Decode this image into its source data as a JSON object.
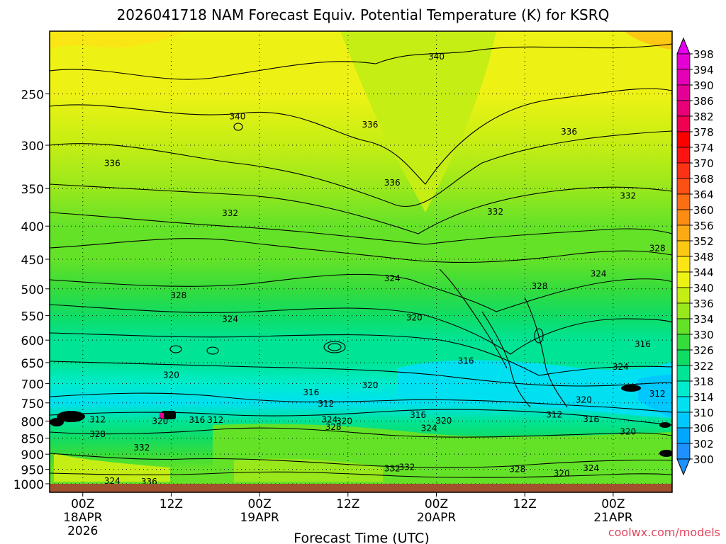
{
  "chart_data": {
    "type": "heatmap",
    "title": "2026041718 NAM Forecast Equiv. Potential Temperature (K) for KSRQ",
    "xlabel": "Forecast Time (UTC)",
    "ylabel": "",
    "credit": "coolwx.com/models",
    "units": "K",
    "y_pressure_range": [
      1000,
      200
    ],
    "y_ticks": [
      250,
      300,
      350,
      400,
      450,
      500,
      550,
      600,
      650,
      700,
      750,
      800,
      850,
      900,
      950,
      1000
    ],
    "x_range_hours": [
      -4.5,
      80
    ],
    "x_ticks": [
      {
        "hour": 0,
        "label": "00Z",
        "sub1": "18APR",
        "sub2": "2026"
      },
      {
        "hour": 12,
        "label": "12Z",
        "sub1": "",
        "sub2": ""
      },
      {
        "hour": 24,
        "label": "00Z",
        "sub1": "19APR",
        "sub2": ""
      },
      {
        "hour": 36,
        "label": "12Z",
        "sub1": "",
        "sub2": ""
      },
      {
        "hour": 48,
        "label": "00Z",
        "sub1": "20APR",
        "sub2": ""
      },
      {
        "hour": 60,
        "label": "12Z",
        "sub1": "",
        "sub2": ""
      },
      {
        "hour": 72,
        "label": "00Z",
        "sub1": "21APR",
        "sub2": ""
      }
    ],
    "colorbar_levels": [
      300,
      302,
      306,
      310,
      314,
      318,
      322,
      326,
      330,
      334,
      336,
      340,
      344,
      348,
      352,
      356,
      360,
      364,
      368,
      370,
      374,
      378,
      382,
      386,
      390,
      394,
      398
    ],
    "colorbar_colors": {
      "300": "#1e90ff",
      "302": "#00a6ff",
      "306": "#00c8ff",
      "310": "#00e0f0",
      "314": "#00eccc",
      "318": "#00e496",
      "322": "#10dc64",
      "326": "#36dc3c",
      "330": "#64e228",
      "334": "#98e81c",
      "336": "#c4ee14",
      "340": "#eef214",
      "344": "#fae614",
      "348": "#fcc814",
      "352": "#fcaa14",
      "356": "#fc8c14",
      "360": "#fc6e14",
      "364": "#fc5014",
      "368": "#fc3214",
      "370": "#fc1414",
      "374": "#fc0000",
      "378": "#f00050",
      "382": "#e80078",
      "386": "#e40096",
      "390": "#e400b4",
      "394": "#e400d2",
      "398": "#e400f0"
    },
    "field_profile": [
      {
        "p": 200,
        "theta_e": 343
      },
      {
        "p": 250,
        "theta_e": 340
      },
      {
        "p": 300,
        "theta_e": 337
      },
      {
        "p": 350,
        "theta_e": 335
      },
      {
        "p": 400,
        "theta_e": 332
      },
      {
        "p": 450,
        "theta_e": 330
      },
      {
        "p": 500,
        "theta_e": 327
      },
      {
        "p": 550,
        "theta_e": 324
      },
      {
        "p": 600,
        "theta_e": 321
      },
      {
        "p": 650,
        "theta_e": 318
      },
      {
        "p": 700,
        "theta_e": 315
      },
      {
        "p": 750,
        "theta_e": 312
      },
      {
        "p": 800,
        "theta_e": 318
      },
      {
        "p": 850,
        "theta_e": 324
      },
      {
        "p": 900,
        "theta_e": 328
      },
      {
        "p": 950,
        "theta_e": 330
      },
      {
        "p": 1000,
        "theta_e": 333
      }
    ],
    "contour_labels": [
      {
        "text": "340",
        "hour": 48,
        "p": 219
      },
      {
        "text": "340",
        "hour": 21,
        "p": 271
      },
      {
        "text": "336",
        "hour": 4,
        "p": 320
      },
      {
        "text": "336",
        "hour": 39,
        "p": 279
      },
      {
        "text": "336",
        "hour": 66,
        "p": 286
      },
      {
        "text": "336",
        "hour": 42,
        "p": 343
      },
      {
        "text": "332",
        "hour": 20,
        "p": 382
      },
      {
        "text": "332",
        "hour": 56,
        "p": 380
      },
      {
        "text": "332",
        "hour": 74,
        "p": 359
      },
      {
        "text": "328",
        "hour": 78,
        "p": 433
      },
      {
        "text": "328",
        "hour": 13,
        "p": 512
      },
      {
        "text": "328",
        "hour": 62,
        "p": 495
      },
      {
        "text": "324",
        "hour": 42,
        "p": 482
      },
      {
        "text": "324",
        "hour": 70,
        "p": 474
      },
      {
        "text": "324",
        "hour": 20,
        "p": 557
      },
      {
        "text": "320",
        "hour": 45,
        "p": 554
      },
      {
        "text": "316",
        "hour": 76,
        "p": 609
      },
      {
        "text": "316",
        "hour": 52,
        "p": 646
      },
      {
        "text": "320",
        "hour": 12,
        "p": 679
      },
      {
        "text": "316",
        "hour": 31,
        "p": 723
      },
      {
        "text": "320",
        "hour": 39,
        "p": 705
      },
      {
        "text": "324",
        "hour": 73,
        "p": 660
      },
      {
        "text": "312",
        "hour": 33,
        "p": 752
      },
      {
        "text": "320",
        "hour": 68,
        "p": 742
      },
      {
        "text": "312",
        "hour": 78,
        "p": 726
      },
      {
        "text": "312",
        "hour": 2,
        "p": 796
      },
      {
        "text": "320",
        "hour": 10.5,
        "p": 800
      },
      {
        "text": "316",
        "hour": 15.5,
        "p": 797
      },
      {
        "text": "312",
        "hour": 18,
        "p": 797
      },
      {
        "text": "324",
        "hour": 33.5,
        "p": 796
      },
      {
        "text": "320",
        "hour": 35.5,
        "p": 800
      },
      {
        "text": "316",
        "hour": 45.5,
        "p": 783
      },
      {
        "text": "312",
        "hour": 64,
        "p": 782
      },
      {
        "text": "320",
        "hour": 49,
        "p": 799
      },
      {
        "text": "316",
        "hour": 69,
        "p": 795
      },
      {
        "text": "328",
        "hour": 2,
        "p": 838
      },
      {
        "text": "328",
        "hour": 34,
        "p": 818
      },
      {
        "text": "324",
        "hour": 47,
        "p": 821
      },
      {
        "text": "320",
        "hour": 74,
        "p": 831
      },
      {
        "text": "332",
        "hour": 8,
        "p": 879
      },
      {
        "text": "320",
        "hour": 82,
        "p": 900
      },
      {
        "text": "332",
        "hour": 42,
        "p": 947
      },
      {
        "text": "332",
        "hour": 44,
        "p": 943
      },
      {
        "text": "328",
        "hour": 59,
        "p": 950
      },
      {
        "text": "324",
        "hour": 69,
        "p": 946
      },
      {
        "text": "320",
        "hour": 65,
        "p": 964
      },
      {
        "text": "324",
        "hour": 4,
        "p": 990
      },
      {
        "text": "336",
        "hour": 9,
        "p": 993
      }
    ]
  }
}
